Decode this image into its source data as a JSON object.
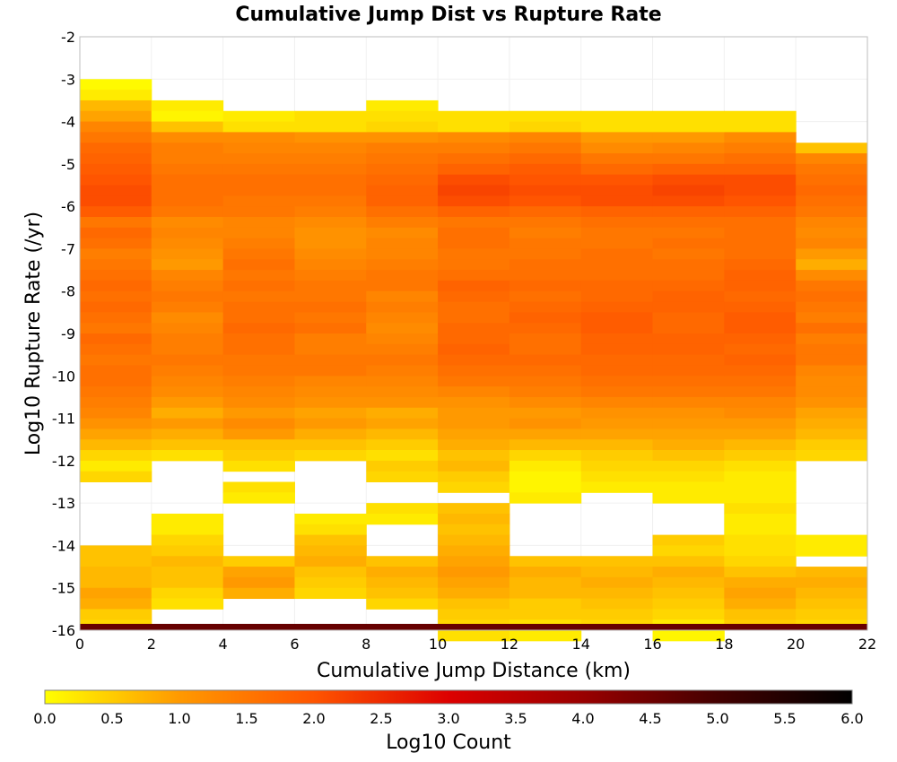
{
  "chart_data": {
    "type": "heatmap",
    "title": "Cumulative Jump Dist vs Rupture Rate",
    "xlabel": "Cumulative Jump Distance (km)",
    "ylabel": "Log10 Rupture Rate (/yr)",
    "xlim": [
      0,
      22
    ],
    "ylim": [
      -16,
      -2
    ],
    "x_ticks": [
      "0",
      "2",
      "4",
      "6",
      "8",
      "10",
      "12",
      "14",
      "16",
      "18",
      "20",
      "22"
    ],
    "y_ticks": [
      "-2",
      "-3",
      "-4",
      "-5",
      "-6",
      "-7",
      "-8",
      "-9",
      "-10",
      "-11",
      "-12",
      "-13",
      "-14",
      "-15",
      "-16"
    ],
    "x_bin_edges": [
      0,
      2,
      4,
      6,
      8,
      10,
      12,
      14,
      16,
      18,
      20,
      22
    ],
    "y_bin_top": -3.0,
    "y_bin_size": -0.25,
    "columns": [
      [
        0.05,
        0.2,
        0.7,
        0.9,
        1.3,
        1.5,
        1.7,
        1.8,
        1.9,
        2.0,
        2.1,
        2.1,
        1.9,
        1.5,
        1.7,
        1.6,
        1.4,
        1.5,
        1.6,
        1.7,
        1.6,
        1.7,
        1.6,
        1.5,
        1.7,
        1.6,
        1.5,
        1.6,
        1.6,
        1.5,
        1.4,
        1.3,
        1.1,
        0.9,
        0.7,
        0.4,
        0.2,
        0.4,
        null,
        null,
        null,
        null,
        null,
        null,
        0.6,
        0.6,
        0.7,
        0.7,
        0.9,
        0.8,
        0.5,
        0.4,
        null,
        null,
        null,
        null,
        null,
        null,
        null,
        null
      ],
      [
        null,
        null,
        0.2,
        0.1,
        0.6,
        1.2,
        1.4,
        1.4,
        1.5,
        1.6,
        1.6,
        1.6,
        1.5,
        1.2,
        1.3,
        1.2,
        1.1,
        1.0,
        1.3,
        1.4,
        1.5,
        1.4,
        1.2,
        1.3,
        1.4,
        1.4,
        1.5,
        1.4,
        1.3,
        1.2,
        1.0,
        0.8,
        1.0,
        0.8,
        0.6,
        0.3,
        null,
        null,
        null,
        null,
        null,
        0.2,
        0.2,
        0.4,
        0.5,
        0.7,
        0.6,
        0.6,
        0.4,
        0.3,
        null,
        null,
        null,
        null,
        null,
        null,
        null,
        null,
        null,
        null
      ],
      [
        null,
        null,
        null,
        0.2,
        0.3,
        1.2,
        1.3,
        1.4,
        1.5,
        1.6,
        1.6,
        1.5,
        1.5,
        1.3,
        1.3,
        1.4,
        1.5,
        1.6,
        1.5,
        1.6,
        1.5,
        1.6,
        1.6,
        1.7,
        1.6,
        1.6,
        1.5,
        1.5,
        1.4,
        1.3,
        1.2,
        1.0,
        1.2,
        1.0,
        0.6,
        0.5,
        0.3,
        null,
        0.3,
        0.2,
        null,
        null,
        null,
        null,
        null,
        0.5,
        0.9,
        1.0,
        0.8,
        null,
        null,
        null,
        null,
        null,
        null,
        null,
        null,
        null,
        null,
        null
      ],
      [
        null,
        null,
        null,
        0.3,
        0.3,
        1.1,
        1.3,
        1.4,
        1.5,
        1.6,
        1.6,
        1.5,
        1.4,
        1.2,
        1.1,
        1.1,
        1.2,
        1.3,
        1.4,
        1.5,
        1.5,
        1.6,
        1.5,
        1.6,
        1.4,
        1.4,
        1.5,
        1.5,
        1.3,
        1.2,
        1.1,
        0.9,
        1.0,
        0.8,
        0.6,
        0.4,
        null,
        null,
        null,
        null,
        null,
        0.2,
        0.3,
        0.6,
        0.7,
        0.8,
        0.6,
        0.5,
        0.4,
        null,
        null,
        null,
        null,
        null,
        null,
        null,
        null,
        null,
        null,
        null
      ],
      [
        null,
        null,
        0.2,
        0.3,
        0.4,
        1.1,
        1.4,
        1.5,
        1.6,
        1.7,
        1.8,
        1.8,
        1.6,
        1.4,
        1.2,
        1.3,
        1.3,
        1.4,
        1.5,
        1.5,
        1.3,
        1.4,
        1.3,
        1.2,
        1.3,
        1.4,
        1.5,
        1.4,
        1.3,
        1.2,
        1.1,
        0.8,
        0.9,
        0.7,
        0.5,
        0.3,
        0.5,
        0.4,
        null,
        null,
        0.3,
        0.2,
        null,
        null,
        null,
        0.6,
        0.8,
        0.7,
        0.6,
        0.4,
        null,
        null,
        null,
        null,
        null,
        null,
        null,
        null,
        null,
        null
      ],
      [
        null,
        null,
        null,
        0.3,
        0.3,
        1.2,
        1.4,
        1.6,
        1.8,
        2.1,
        2.2,
        2.1,
        1.8,
        1.5,
        1.6,
        1.6,
        1.5,
        1.5,
        1.6,
        1.8,
        1.7,
        1.6,
        1.6,
        1.7,
        1.7,
        1.8,
        1.7,
        1.6,
        1.5,
        1.3,
        1.1,
        1.0,
        1.0,
        0.9,
        0.8,
        0.6,
        0.7,
        0.5,
        0.4,
        null,
        0.6,
        0.7,
        0.6,
        0.7,
        0.8,
        0.9,
        1.0,
        0.9,
        0.8,
        0.6,
        0.5,
        0.4,
        0.3,
        null,
        null,
        null,
        null,
        null,
        null,
        null
      ],
      [
        null,
        null,
        null,
        0.3,
        0.4,
        1.3,
        1.5,
        1.7,
        1.9,
        2.0,
        2.1,
        2.0,
        1.7,
        1.5,
        1.4,
        1.5,
        1.5,
        1.6,
        1.6,
        1.7,
        1.6,
        1.7,
        1.8,
        1.7,
        1.6,
        1.6,
        1.7,
        1.6,
        1.5,
        1.4,
        1.2,
        1.0,
        1.1,
        0.9,
        0.7,
        0.4,
        0.2,
        0.1,
        0.1,
        0.2,
        null,
        null,
        null,
        null,
        null,
        0.6,
        0.8,
        0.7,
        0.7,
        0.5,
        0.5,
        0.3,
        0.2,
        null,
        null,
        null,
        null,
        null,
        null,
        null
      ],
      [
        null,
        null,
        null,
        0.3,
        0.3,
        1.0,
        1.2,
        1.5,
        1.7,
        2.0,
        2.1,
        2.1,
        1.8,
        1.6,
        1.5,
        1.5,
        1.6,
        1.6,
        1.6,
        1.7,
        1.7,
        1.8,
        1.9,
        1.9,
        1.8,
        1.8,
        1.7,
        1.7,
        1.6,
        1.5,
        1.3,
        1.1,
        1.0,
        0.9,
        0.7,
        0.5,
        0.4,
        0.3,
        0.2,
        null,
        null,
        null,
        null,
        null,
        null,
        0.6,
        0.7,
        0.8,
        0.7,
        0.6,
        0.5,
        0.4,
        null,
        null,
        null,
        null,
        null,
        null,
        null,
        null
      ],
      [
        null,
        null,
        null,
        0.3,
        0.3,
        1.0,
        1.3,
        1.5,
        1.8,
        2.1,
        2.2,
        2.1,
        1.8,
        1.6,
        1.5,
        1.6,
        1.5,
        1.6,
        1.6,
        1.7,
        1.8,
        1.8,
        1.7,
        1.7,
        1.8,
        1.8,
        1.7,
        1.7,
        1.6,
        1.5,
        1.3,
        1.1,
        1.0,
        0.9,
        0.8,
        0.6,
        0.4,
        0.3,
        0.2,
        0.2,
        null,
        null,
        null,
        0.5,
        0.4,
        0.6,
        0.8,
        0.7,
        0.6,
        0.5,
        0.4,
        0.2,
        0.1,
        null,
        null,
        null,
        null,
        null,
        null,
        null
      ],
      [
        null,
        null,
        null,
        0.3,
        0.3,
        1.2,
        1.4,
        1.6,
        1.8,
        2.1,
        2.1,
        2.0,
        1.8,
        1.6,
        1.6,
        1.6,
        1.6,
        1.7,
        1.8,
        1.8,
        1.7,
        1.8,
        1.9,
        1.9,
        1.8,
        1.7,
        1.8,
        1.7,
        1.6,
        1.5,
        1.3,
        1.2,
        1.0,
        0.9,
        0.7,
        0.5,
        0.3,
        0.2,
        0.2,
        0.2,
        0.3,
        0.2,
        0.2,
        0.3,
        0.3,
        0.4,
        0.6,
        0.8,
        0.9,
        0.8,
        0.6,
        0.5,
        null,
        null,
        null,
        null,
        null,
        null,
        null,
        null
      ],
      [
        null,
        null,
        null,
        null,
        null,
        null,
        0.6,
        1.3,
        1.5,
        1.6,
        1.7,
        1.6,
        1.5,
        1.3,
        1.2,
        1.3,
        1.0,
        0.8,
        1.2,
        1.5,
        1.6,
        1.5,
        1.4,
        1.6,
        1.4,
        1.5,
        1.5,
        1.3,
        1.2,
        1.2,
        1.1,
        0.9,
        0.8,
        0.7,
        0.5,
        0.4,
        null,
        null,
        null,
        null,
        null,
        null,
        null,
        0.2,
        0.2,
        null,
        0.7,
        0.8,
        0.7,
        0.6,
        0.5,
        0.4,
        null,
        null,
        null,
        null,
        null,
        null,
        null,
        null
      ]
    ],
    "grid": true,
    "colorbar": {
      "label": "Log10 Count",
      "range": [
        0.0,
        6.0
      ],
      "ticks": [
        "0.0",
        "0.5",
        "1.0",
        "1.5",
        "2.0",
        "2.5",
        "3.0",
        "3.5",
        "4.0",
        "4.5",
        "5.0",
        "5.5",
        "6.0"
      ],
      "stops": [
        "#ffff00",
        "#ff9900",
        "#ff5500",
        "#dd0000",
        "#990000",
        "#440000",
        "#000000"
      ]
    },
    "bottom_band": {
      "y_range": [
        -16,
        -15.85
      ],
      "color": "#660000"
    }
  }
}
